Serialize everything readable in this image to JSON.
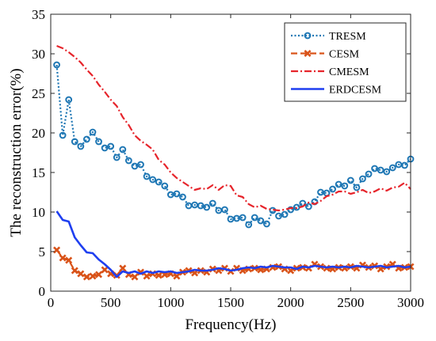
{
  "chart_data": {
    "type": "line",
    "xlabel": "Frequency(Hz)",
    "ylabel": "The reconstruction error(%)",
    "xlim": [
      0,
      3000
    ],
    "ylim": [
      0,
      35
    ],
    "xticks": [
      0,
      500,
      1000,
      1500,
      2000,
      2500,
      3000
    ],
    "yticks": [
      0,
      5,
      10,
      15,
      20,
      25,
      30,
      35
    ],
    "grid": false,
    "legend_position": "top-right",
    "series": [
      {
        "name": "TRESM",
        "color": "#1f77b4",
        "line_style": "dotted",
        "marker": "circle",
        "x": [
          50,
          100,
          150,
          200,
          250,
          300,
          350,
          400,
          450,
          500,
          550,
          600,
          650,
          700,
          750,
          800,
          850,
          900,
          950,
          1000,
          1050,
          1100,
          1150,
          1200,
          1250,
          1300,
          1350,
          1400,
          1450,
          1500,
          1550,
          1600,
          1650,
          1700,
          1750,
          1800,
          1850,
          1900,
          1950,
          2000,
          2050,
          2100,
          2150,
          2200,
          2250,
          2300,
          2350,
          2400,
          2450,
          2500,
          2550,
          2600,
          2650,
          2700,
          2750,
          2800,
          2850,
          2900,
          2950,
          3000
        ],
        "y": [
          28.6,
          19.7,
          24.2,
          18.9,
          18.3,
          19.2,
          20.1,
          18.9,
          18.1,
          18.3,
          16.9,
          17.9,
          16.5,
          15.8,
          16.0,
          14.5,
          14.1,
          13.8,
          13.3,
          12.2,
          12.3,
          11.9,
          10.8,
          10.9,
          10.8,
          10.6,
          11.1,
          10.2,
          10.3,
          9.1,
          9.2,
          9.3,
          8.4,
          9.3,
          8.9,
          8.5,
          10.2,
          9.5,
          9.7,
          10.3,
          10.6,
          11.1,
          10.7,
          11.3,
          12.5,
          12.4,
          12.9,
          13.5,
          13.3,
          14.0,
          13.1,
          14.2,
          14.8,
          15.5,
          15.3,
          15.1,
          15.6,
          16.0,
          15.9,
          16.7
        ]
      },
      {
        "name": "CESM",
        "color": "#d95319",
        "line_style": "dashed",
        "marker": "x",
        "x": [
          50,
          100,
          150,
          200,
          250,
          300,
          350,
          400,
          450,
          500,
          550,
          600,
          650,
          700,
          750,
          800,
          850,
          900,
          950,
          1000,
          1050,
          1100,
          1150,
          1200,
          1250,
          1300,
          1350,
          1400,
          1450,
          1500,
          1550,
          1600,
          1650,
          1700,
          1750,
          1800,
          1850,
          1900,
          1950,
          2000,
          2050,
          2100,
          2150,
          2200,
          2250,
          2300,
          2350,
          2400,
          2450,
          2500,
          2550,
          2600,
          2650,
          2700,
          2750,
          2800,
          2850,
          2900,
          2950,
          3000
        ],
        "y": [
          5.2,
          4.2,
          3.9,
          2.6,
          2.2,
          1.8,
          1.9,
          2.1,
          2.7,
          2.2,
          2.0,
          2.9,
          2.1,
          1.8,
          2.4,
          1.9,
          2.2,
          2.0,
          2.1,
          2.2,
          1.9,
          2.4,
          2.6,
          2.3,
          2.6,
          2.4,
          2.8,
          2.6,
          2.9,
          2.5,
          2.9,
          2.6,
          2.8,
          2.9,
          2.7,
          2.8,
          3.0,
          3.1,
          2.8,
          2.6,
          2.9,
          3.0,
          2.9,
          3.4,
          3.1,
          2.9,
          2.8,
          3.0,
          2.9,
          3.1,
          2.9,
          3.3,
          3.0,
          3.2,
          2.8,
          3.1,
          3.4,
          2.9,
          3.0,
          3.1
        ]
      },
      {
        "name": "CMESM",
        "color": "#e6242b",
        "line_style": "dashdot",
        "marker": "none",
        "x": [
          50,
          100,
          150,
          200,
          250,
          300,
          350,
          400,
          450,
          500,
          550,
          600,
          650,
          700,
          750,
          800,
          850,
          900,
          950,
          1000,
          1050,
          1100,
          1150,
          1200,
          1250,
          1300,
          1350,
          1400,
          1450,
          1500,
          1550,
          1600,
          1650,
          1700,
          1750,
          1800,
          1850,
          1900,
          1950,
          2000,
          2050,
          2100,
          2150,
          2200,
          2250,
          2300,
          2350,
          2400,
          2450,
          2500,
          2550,
          2600,
          2650,
          2700,
          2750,
          2800,
          2850,
          2900,
          2950,
          3000
        ],
        "y": [
          31.0,
          30.7,
          30.2,
          29.6,
          28.9,
          28.0,
          27.2,
          26.1,
          25.2,
          24.2,
          23.4,
          22.0,
          21.0,
          19.7,
          19.0,
          18.5,
          17.9,
          16.6,
          16.0,
          15.0,
          14.3,
          13.8,
          13.3,
          12.8,
          13.0,
          12.9,
          13.4,
          12.8,
          13.4,
          13.3,
          12.1,
          11.9,
          11.0,
          10.6,
          10.8,
          10.4,
          10.3,
          10.2,
          10.3,
          10.5,
          10.5,
          10.7,
          11.2,
          11.0,
          11.4,
          12.0,
          12.2,
          12.6,
          12.6,
          12.3,
          12.5,
          12.8,
          12.4,
          12.6,
          13.0,
          12.7,
          13.1,
          13.2,
          13.7,
          12.9
        ]
      },
      {
        "name": "ERDCESM",
        "color": "#1f3ff0",
        "line_style": "solid",
        "marker": "none",
        "x": [
          50,
          100,
          150,
          200,
          250,
          300,
          350,
          400,
          450,
          500,
          550,
          600,
          650,
          700,
          750,
          800,
          850,
          900,
          950,
          1000,
          1050,
          1100,
          1150,
          1200,
          1250,
          1300,
          1350,
          1400,
          1450,
          1500,
          1550,
          1600,
          1650,
          1700,
          1750,
          1800,
          1850,
          1900,
          1950,
          2000,
          2050,
          2100,
          2150,
          2200,
          2250,
          2300,
          2350,
          2400,
          2450,
          2500,
          2550,
          2600,
          2650,
          2700,
          2750,
          2800,
          2850,
          2900,
          2950,
          3000
        ],
        "y": [
          10.1,
          9.0,
          8.8,
          6.8,
          5.8,
          4.9,
          4.8,
          4.0,
          3.4,
          2.7,
          1.8,
          2.5,
          2.3,
          2.5,
          2.2,
          2.5,
          2.3,
          2.5,
          2.4,
          2.5,
          2.3,
          2.4,
          2.5,
          2.7,
          2.6,
          2.6,
          2.7,
          2.9,
          2.8,
          2.6,
          2.7,
          2.9,
          3.0,
          2.9,
          3.1,
          3.0,
          3.2,
          3.1,
          3.0,
          3.0,
          2.8,
          3.1,
          3.0,
          3.2,
          3.1,
          3.0,
          3.1,
          3.0,
          3.1,
          3.0,
          3.2,
          3.1,
          3.0,
          3.1,
          3.2,
          3.0,
          3.1,
          3.2,
          3.0,
          3.1
        ]
      }
    ]
  }
}
